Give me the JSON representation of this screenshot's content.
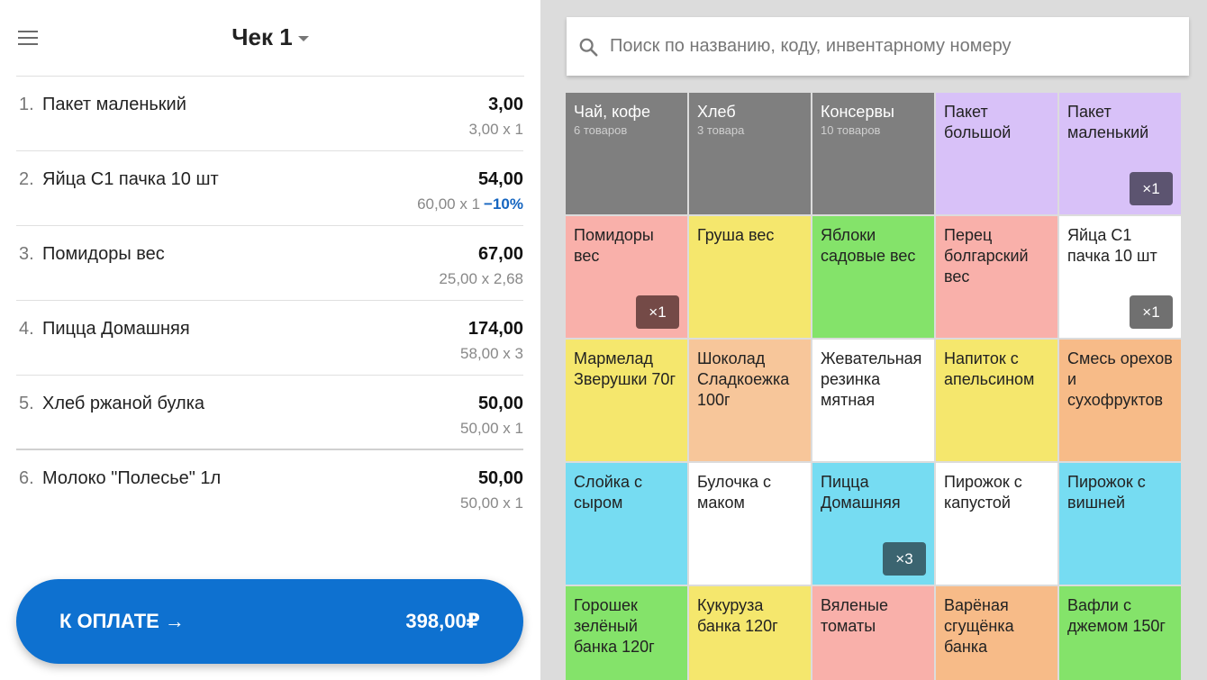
{
  "receipt": {
    "title": "Чек 1",
    "items": [
      {
        "num": "1.",
        "name": "Пакет маленький",
        "total": "3,00",
        "sub": "3,00 х 1",
        "discount": ""
      },
      {
        "num": "2.",
        "name": "Яйца С1 пачка 10 шт",
        "total": "54,00",
        "sub": "60,00 х 1",
        "discount": "−10%"
      },
      {
        "num": "3.",
        "name": "Помидоры вес",
        "total": "67,00",
        "sub": "25,00 х 2,68",
        "discount": ""
      },
      {
        "num": "4.",
        "name": "Пицца Домашняя",
        "total": "174,00",
        "sub": "58,00 х 3",
        "discount": ""
      },
      {
        "num": "5.",
        "name": "Хлеб ржаной булка",
        "total": "50,00",
        "sub": "50,00 х 1",
        "discount": ""
      },
      {
        "num": "6.",
        "name": "Молоко \"Полесье\" 1л",
        "total": "50,00",
        "sub": "50,00 х 1",
        "discount": ""
      }
    ],
    "pay_label": "К ОПЛАТЕ →",
    "pay_amount": "398,00₽"
  },
  "search": {
    "placeholder": "Поиск по названию, коду, инвентарному номеру"
  },
  "tiles": [
    {
      "label": "Чай, кофе",
      "count": "6 товаров",
      "color": "#7f7f7f",
      "type": "category",
      "qty": ""
    },
    {
      "label": "Хлеб",
      "count": "3 товара",
      "color": "#7f7f7f",
      "type": "category",
      "qty": ""
    },
    {
      "label": "Консервы",
      "count": "10 товаров",
      "color": "#7f7f7f",
      "type": "category",
      "qty": ""
    },
    {
      "label": "Пакет большой",
      "count": "",
      "color": "#d8c1f8",
      "type": "product",
      "qty": ""
    },
    {
      "label": "Пакет маленький",
      "count": "",
      "color": "#d8c1f8",
      "type": "product",
      "qty": "×1",
      "qty_color": "#5c5470"
    },
    {
      "label": "Помидоры вес",
      "count": "",
      "color": "#f9b0aa",
      "type": "product",
      "qty": "×1",
      "qty_color": "#744a47"
    },
    {
      "label": "Груша вес",
      "count": "",
      "color": "#f5e76d",
      "type": "product",
      "qty": ""
    },
    {
      "label": "Яблоки садовые вес",
      "count": "",
      "color": "#84e36a",
      "type": "product",
      "qty": ""
    },
    {
      "label": "Перец болгарский вес",
      "count": "",
      "color": "#f9b0aa",
      "type": "product",
      "qty": ""
    },
    {
      "label": "Яйца С1 пачка 10 шт",
      "count": "",
      "color": "#ffffff",
      "type": "product",
      "qty": "×1",
      "qty_color": "#707070"
    },
    {
      "label": "Мармелад Зверушки 70г",
      "count": "",
      "color": "#f5e76d",
      "type": "product",
      "qty": ""
    },
    {
      "label": "Шоколад Сладкоежка 100г",
      "count": "",
      "color": "#f7c69a",
      "type": "product",
      "qty": ""
    },
    {
      "label": "Жевательная резинка мятная",
      "count": "",
      "color": "#ffffff",
      "type": "product",
      "qty": ""
    },
    {
      "label": "Напиток с апельсином",
      "count": "",
      "color": "#f5e76d",
      "type": "product",
      "qty": ""
    },
    {
      "label": "Смесь орехов и сухофруктов",
      "count": "",
      "color": "#f7bb88",
      "type": "product",
      "qty": ""
    },
    {
      "label": "Слойка с сыром",
      "count": "",
      "color": "#76dcf2",
      "type": "product",
      "qty": ""
    },
    {
      "label": "Булочка с маком",
      "count": "",
      "color": "#ffffff",
      "type": "product",
      "qty": ""
    },
    {
      "label": "Пицца Домашняя",
      "count": "",
      "color": "#76dcf2",
      "type": "product",
      "qty": "×3",
      "qty_color": "#3b6470"
    },
    {
      "label": "Пирожок с капустой",
      "count": "",
      "color": "#ffffff",
      "type": "product",
      "qty": ""
    },
    {
      "label": "Пирожок с вишней",
      "count": "",
      "color": "#76dcf2",
      "type": "product",
      "qty": ""
    },
    {
      "label": "Горошек зелёный банка 120г",
      "count": "",
      "color": "#84e36a",
      "type": "product",
      "qty": ""
    },
    {
      "label": "Кукуруза банка 120г",
      "count": "",
      "color": "#f5e76d",
      "type": "product",
      "qty": ""
    },
    {
      "label": "Вяленые томаты",
      "count": "",
      "color": "#f9b0aa",
      "type": "product",
      "qty": ""
    },
    {
      "label": "Варёная сгущёнка банка",
      "count": "",
      "color": "#f7bb88",
      "type": "product",
      "qty": ""
    },
    {
      "label": "Вафли с джемом 150г",
      "count": "",
      "color": "#84e36a",
      "type": "product",
      "qty": ""
    }
  ]
}
